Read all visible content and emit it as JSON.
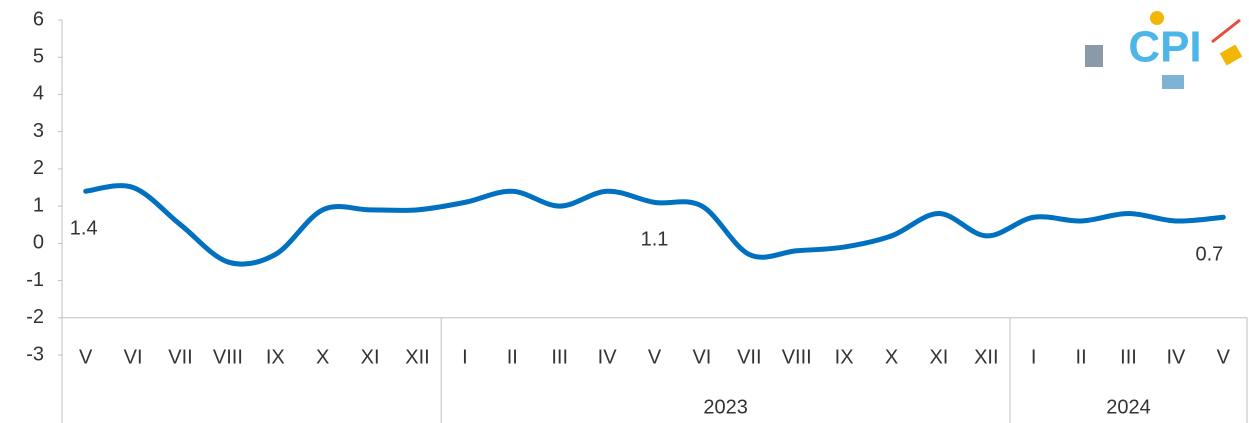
{
  "chart_data": {
    "type": "line",
    "groups": [
      {
        "name": null,
        "categories": [
          "V",
          "VI",
          "VII",
          "VIII",
          "IX",
          "X",
          "XI",
          "XII"
        ]
      },
      {
        "name": "2023",
        "categories": [
          "I",
          "II",
          "III",
          "IV",
          "V",
          "VI",
          "VII",
          "VIII",
          "IX",
          "X",
          "XI",
          "XII"
        ]
      },
      {
        "name": "2024",
        "categories": [
          "I",
          "II",
          "III",
          "IV",
          "V"
        ]
      }
    ],
    "values": [
      1.4,
      1.5,
      0.5,
      -0.5,
      -0.3,
      0.9,
      0.9,
      0.9,
      1.1,
      1.4,
      1.0,
      1.4,
      1.1,
      1.0,
      -0.3,
      -0.2,
      -0.1,
      0.2,
      0.8,
      0.2,
      0.7,
      0.6,
      0.8,
      0.6,
      0.7
    ],
    "value_labels": [
      "1.4",
      null,
      null,
      null,
      null,
      null,
      null,
      null,
      null,
      null,
      null,
      null,
      "1.1",
      null,
      null,
      null,
      null,
      null,
      null,
      null,
      null,
      null,
      null,
      null,
      "0.7"
    ],
    "color": "#0070c0",
    "ylim": [
      -3,
      6
    ],
    "yticks": [
      -3,
      -2,
      -1,
      0,
      1,
      2,
      3,
      4,
      5,
      6
    ],
    "grid": false
  }
}
